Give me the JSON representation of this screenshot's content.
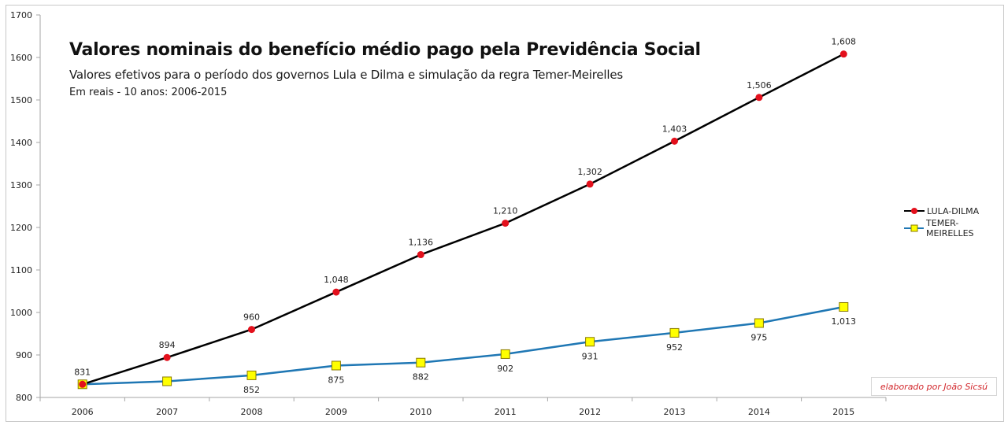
{
  "chart_data": {
    "type": "line",
    "title": "Valores nominais do benefício médio pago pela Previdência Social",
    "subtitle": "Valores efetivos para o período dos governos Lula e Dilma e simulação da regra Temer-Meirelles",
    "subtitle2": "Em reais - 10 anos: 2006-2015",
    "xlabel": "",
    "ylabel": "",
    "categories": [
      "2006",
      "2007",
      "2008",
      "2009",
      "2010",
      "2011",
      "2012",
      "2013",
      "2014",
      "2015"
    ],
    "ylim": [
      800,
      1700
    ],
    "yticks": [
      800,
      900,
      1000,
      1100,
      1200,
      1300,
      1400,
      1500,
      1600,
      1700
    ],
    "grid": false,
    "legend_position": "right",
    "series": [
      {
        "name": "LULA-DILMA",
        "line_color": "#000000",
        "marker": "circle",
        "marker_color": "#e3101c",
        "values": [
          831,
          894,
          960,
          1048,
          1136,
          1210,
          1302,
          1403,
          1506,
          1608
        ],
        "labels": [
          "831",
          "894",
          "960",
          "1,048",
          "1,136",
          "1,210",
          "1,302",
          "1,403",
          "1,506",
          "1,608"
        ],
        "label_position": "above"
      },
      {
        "name": "TEMER-MEIRELLES",
        "line_color": "#1f77b4",
        "marker": "square",
        "marker_color": "#ffff00",
        "values": [
          831,
          838,
          852,
          875,
          882,
          902,
          931,
          952,
          975,
          1013
        ],
        "labels": [
          "",
          "",
          "852",
          "875",
          "882",
          "902",
          "931",
          "952",
          "975",
          "1,013"
        ],
        "label_position": "below"
      }
    ],
    "annotation": "elaborado por João Sicsú"
  }
}
